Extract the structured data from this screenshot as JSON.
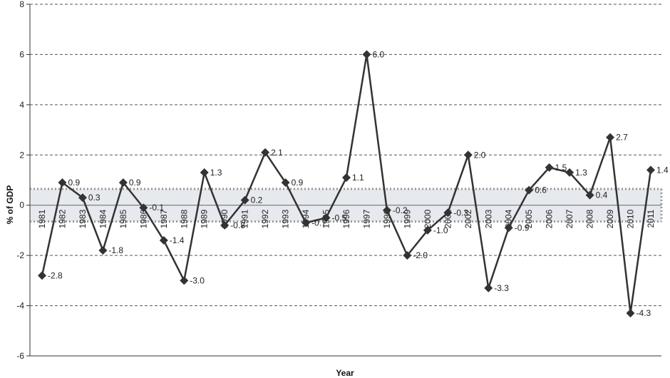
{
  "chart_data": {
    "type": "line",
    "title": "",
    "xlabel": "Year",
    "ylabel": "% of GDP",
    "ylim": [
      -6,
      8
    ],
    "yticks": [
      -6,
      -4,
      -2,
      0,
      2,
      4,
      6,
      8
    ],
    "grid": "horizontal dashed",
    "band": {
      "low": -0.65,
      "high": 0.65,
      "style": "dotted border, light gray fill"
    },
    "categories": [
      "1981",
      "1982",
      "1983",
      "1984",
      "1985",
      "1986",
      "1987",
      "1988",
      "1989",
      "1990",
      "1991",
      "1992",
      "1993",
      "1994",
      "1995",
      "1996",
      "1997",
      "1998",
      "1999",
      "2000",
      "2001",
      "2002",
      "2003",
      "2004",
      "2005",
      "2006",
      "2007",
      "2008",
      "2009",
      "2010",
      "2011"
    ],
    "series": [
      {
        "name": "",
        "values": [
          -2.8,
          0.9,
          0.3,
          -1.8,
          0.9,
          -0.1,
          -1.4,
          -3.0,
          1.3,
          -0.8,
          0.2,
          2.1,
          0.9,
          -0.7,
          -0.5,
          1.1,
          6.0,
          -0.2,
          -2.0,
          -1.0,
          -0.3,
          2.0,
          -3.3,
          -0.9,
          0.6,
          1.5,
          1.3,
          0.4,
          2.7,
          -4.3,
          1.4
        ],
        "labels": [
          "-2.8",
          "0.9",
          "0.3",
          "-1.8",
          "0.9",
          "-0.1",
          "-1.4",
          "-3.0",
          "1.3",
          "-0.8",
          "0.2",
          "2.1",
          "0.9",
          "-0.7",
          "-0.5",
          "1.1",
          "6.0",
          "-0.2",
          "-2.0",
          "-1.0",
          "-0.3",
          "2.0",
          "-3.3",
          "-0.9",
          "0.6",
          "1.5",
          "1.3",
          "0.4",
          "2.7",
          "-4.3",
          "1.4"
        ]
      }
    ]
  },
  "colors": {
    "line": "#333333",
    "marker": "#333333",
    "band_fill": "#e6e9ed",
    "band_border": "#999999",
    "grid": "#555555",
    "axis": "#333333"
  }
}
